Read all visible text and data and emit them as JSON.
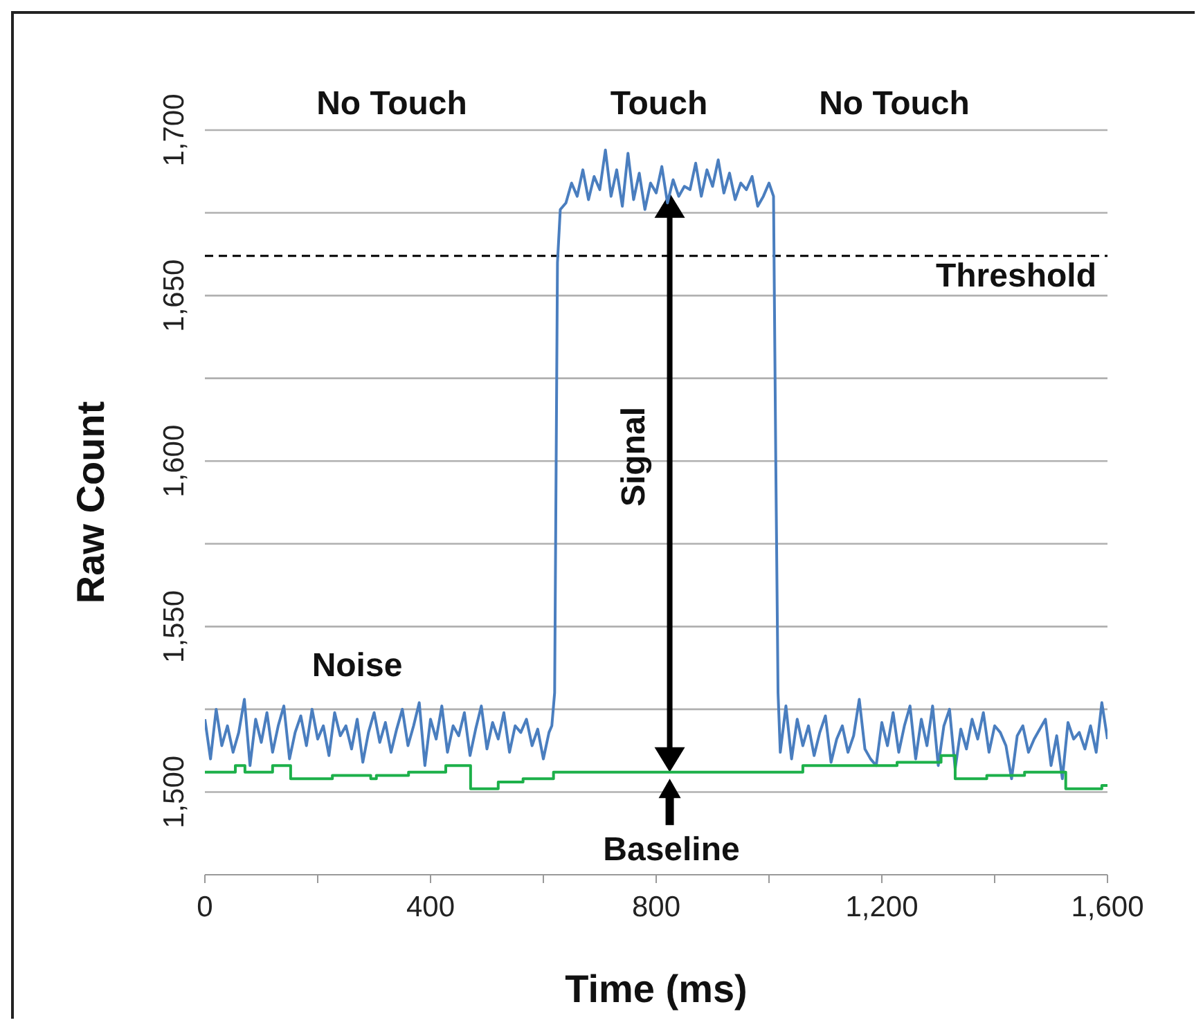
{
  "chart_data": {
    "type": "line",
    "xlabel": "Time (ms)",
    "ylabel": "Raw Count",
    "xlim": [
      0,
      1600
    ],
    "xticks": [
      0,
      {
        "value": 200,
        "label": null
      },
      {
        "value": 400,
        "label": "400"
      },
      {
        "value": 600,
        "label": null
      },
      {
        "value": 800,
        "label": "800"
      },
      {
        "value": 1000,
        "label": null
      },
      {
        "value": 1200,
        "label": "1,200"
      },
      {
        "value": 1400,
        "label": null
      },
      {
        "value": 1600,
        "label": "1,600"
      }
    ],
    "ylim": [
      1475,
      1700
    ],
    "yticks": [
      {
        "value": 1500,
        "label": "1,500"
      },
      {
        "value": 1525,
        "label": null
      },
      {
        "value": 1550,
        "label": "1,550"
      },
      {
        "value": 1575,
        "label": null
      },
      {
        "value": 1600,
        "label": "1,600"
      },
      {
        "value": 1625,
        "label": null
      },
      {
        "value": 1650,
        "label": "1,650"
      },
      {
        "value": 1675,
        "label": null
      },
      {
        "value": 1700,
        "label": "1,700"
      }
    ],
    "grid": "y",
    "legend": false,
    "marker": "none",
    "line_style": "solid",
    "series": [
      {
        "color": "#4a7ebf",
        "x": [
          0,
          10,
          20,
          30,
          40,
          50,
          60,
          70,
          80,
          90,
          100,
          110,
          120,
          130,
          140,
          150,
          160,
          170,
          180,
          190,
          200,
          210,
          220,
          230,
          240,
          250,
          260,
          270,
          280,
          290,
          300,
          310,
          320,
          330,
          340,
          350,
          360,
          370,
          380,
          390,
          400,
          410,
          420,
          430,
          440,
          450,
          460,
          470,
          480,
          490,
          500,
          510,
          520,
          530,
          540,
          550,
          560,
          570,
          580,
          590,
          600,
          610,
          615,
          620,
          625,
          630,
          640,
          650,
          660,
          670,
          680,
          690,
          700,
          710,
          720,
          730,
          740,
          750,
          760,
          770,
          780,
          790,
          800,
          810,
          820,
          830,
          840,
          850,
          860,
          870,
          880,
          890,
          900,
          910,
          920,
          930,
          940,
          950,
          960,
          970,
          980,
          990,
          1000,
          1008,
          1012,
          1016,
          1020,
          1030,
          1040,
          1050,
          1060,
          1070,
          1080,
          1090,
          1100,
          1110,
          1120,
          1130,
          1140,
          1150,
          1160,
          1170,
          1180,
          1190,
          1200,
          1210,
          1220,
          1230,
          1240,
          1250,
          1260,
          1270,
          1280,
          1290,
          1300,
          1310,
          1320,
          1330,
          1340,
          1350,
          1360,
          1370,
          1380,
          1390,
          1400,
          1410,
          1420,
          1430,
          1440,
          1450,
          1460,
          1470,
          1480,
          1490,
          1500,
          1510,
          1520,
          1530,
          1540,
          1550,
          1560,
          1570,
          1580,
          1590,
          1600
        ],
        "values": [
          1522,
          1510,
          1525,
          1514,
          1520,
          1512,
          1518,
          1528,
          1508,
          1522,
          1515,
          1524,
          1512,
          1520,
          1526,
          1510,
          1518,
          1523,
          1514,
          1525,
          1516,
          1520,
          1511,
          1524,
          1517,
          1520,
          1513,
          1522,
          1509,
          1518,
          1524,
          1515,
          1521,
          1512,
          1519,
          1525,
          1514,
          1520,
          1527,
          1508,
          1522,
          1516,
          1526,
          1512,
          1520,
          1517,
          1524,
          1511,
          1519,
          1526,
          1513,
          1521,
          1516,
          1524,
          1512,
          1520,
          1518,
          1522,
          1514,
          1519,
          1510,
          1518,
          1520,
          1530,
          1660,
          1676,
          1678,
          1684,
          1680,
          1688,
          1679,
          1686,
          1682,
          1694,
          1680,
          1688,
          1677,
          1693,
          1679,
          1687,
          1676,
          1684,
          1681,
          1689,
          1678,
          1685,
          1680,
          1683,
          1682,
          1690,
          1680,
          1688,
          1683,
          1691,
          1681,
          1687,
          1679,
          1684,
          1682,
          1686,
          1677,
          1680,
          1684,
          1680,
          1600,
          1530,
          1512,
          1526,
          1510,
          1522,
          1514,
          1520,
          1511,
          1518,
          1523,
          1509,
          1516,
          1520,
          1512,
          1517,
          1528,
          1513,
          1510,
          1508,
          1521,
          1514,
          1524,
          1512,
          1520,
          1526,
          1510,
          1522,
          1514,
          1526,
          1508,
          1520,
          1525,
          1507,
          1519,
          1513,
          1522,
          1516,
          1524,
          1512,
          1520,
          1518,
          1514,
          1504,
          1517,
          1520,
          1512,
          1516,
          1519,
          1522,
          1508,
          1517,
          1504,
          1521,
          1516,
          1518,
          1513,
          1520,
          1512,
          1527,
          1516
        ]
      },
      {
        "type": "step",
        "color": "#1db04a",
        "x": [
          0,
          54,
          71,
          120,
          152,
          226,
          294,
          304,
          361,
          427,
          471,
          520,
          564,
          618,
          1060,
          1114,
          1227,
          1305,
          1330,
          1386,
          1453,
          1526,
          1590,
          1600
        ],
        "values": [
          1506,
          1508,
          1506,
          1508,
          1504,
          1505,
          1504,
          1505,
          1506,
          1508,
          1501,
          1503,
          1504,
          1506,
          1508,
          1508,
          1509,
          1511,
          1504,
          1505,
          1506,
          1501,
          1502,
          1502
        ]
      }
    ],
    "ref_lines": [
      {
        "axis": "y",
        "value": 1662,
        "label": "Threshold",
        "color": "#000000",
        "line_style": "dashed"
      }
    ],
    "annotations": [
      "No Touch",
      "Touch",
      "No Touch",
      "Signal",
      "Noise",
      "Baseline"
    ]
  }
}
